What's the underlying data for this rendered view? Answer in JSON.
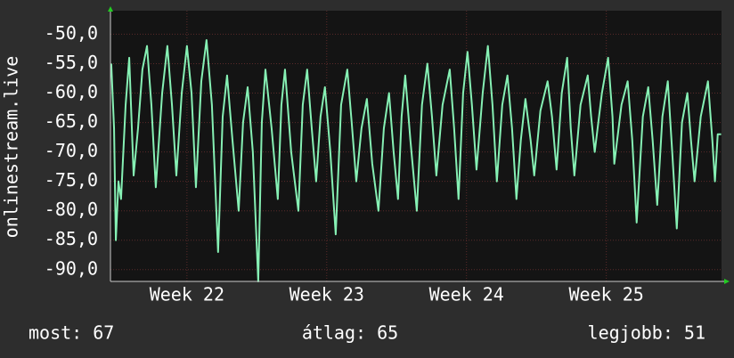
{
  "chart_data": {
    "type": "line",
    "y_label": "onlinestream.live",
    "x": [
      0.04,
      0.18,
      0.27,
      0.4,
      0.53,
      0.76,
      0.94,
      1.16,
      1.38,
      1.6,
      1.83,
      2.05,
      2.27,
      2.59,
      2.85,
      3.08,
      3.3,
      3.57,
      3.83,
      4.06,
      4.28,
      4.55,
      4.81,
      5.08,
      5.39,
      5.62,
      5.84,
      6.11,
      6.42,
      6.64,
      6.87,
      7.13,
      7.4,
      7.58,
      7.76,
      8.07,
      8.38,
      8.56,
      8.74,
      9.05,
      9.41,
      9.63,
      9.85,
      10.08,
      10.3,
      10.52,
      10.74,
      11.01,
      11.28,
      11.55,
      11.86,
      12.08,
      12.31,
      12.57,
      12.84,
      13.11,
      13.42,
      13.69,
      13.95,
      14.18,
      14.4,
      14.58,
      14.76,
      15.02,
      15.34,
      15.6,
      15.87,
      16.1,
      16.32,
      16.63,
      16.99,
      17.21,
      17.43,
      17.66,
      17.88,
      18.1,
      18.33,
      18.64,
      18.9,
      19.13,
      19.35,
      19.62,
      19.88,
      20.11,
      20.33,
      20.55,
      20.78,
      21.04,
      21.22,
      21.53,
      21.89,
      22.11,
      22.34,
      22.6,
      22.87,
      23.05,
      23.23,
      23.54,
      23.9,
      24.07,
      24.25,
      24.61,
      24.92,
      25.14,
      25.23,
      25.59,
      25.9,
      26.13,
      26.35,
      26.66,
      26.93,
      27.15,
      27.38,
      27.64,
      27.91,
      28.13,
      28.36,
      28.62,
      28.89,
      29.07,
      29.25,
      29.56,
      29.92,
      30.14,
      30.27,
      30.41,
      30.58
    ],
    "series": [
      {
        "name": "onlinestream.live",
        "color": "#86f0b4",
        "values": [
          -55,
          -66,
          -85,
          -75,
          -78,
          -62,
          -54,
          -74,
          -66,
          -56,
          -52,
          -62,
          -76,
          -60,
          -52,
          -62,
          -74,
          -60,
          -52,
          -60,
          -76,
          -58,
          -51,
          -62,
          -87,
          -64,
          -57,
          -68,
          -80,
          -65,
          -59,
          -70,
          -92,
          -65,
          -56,
          -66,
          -78,
          -62,
          -56,
          -70,
          -80,
          -62,
          -56,
          -66,
          -75,
          -64,
          -59,
          -70,
          -84,
          -62,
          -56,
          -65,
          -75,
          -66,
          -61,
          -72,
          -80,
          -66,
          -60,
          -70,
          -78,
          -64,
          -57,
          -68,
          -80,
          -62,
          -55,
          -64,
          -74,
          -62,
          -56,
          -66,
          -78,
          -60,
          -53,
          -62,
          -73,
          -60,
          -52,
          -62,
          -75,
          -62,
          -57,
          -66,
          -78,
          -68,
          -61,
          -68,
          -74,
          -63,
          -58,
          -64,
          -73,
          -60,
          -54,
          -66,
          -74,
          -62,
          -57,
          -64,
          -70,
          -60,
          -54,
          -64,
          -72,
          -62,
          -58,
          -68,
          -82,
          -64,
          -59,
          -68,
          -79,
          -64,
          -58,
          -70,
          -83,
          -65,
          -60,
          -68,
          -75,
          -64,
          -58,
          -68,
          -75,
          -67,
          -67
        ]
      }
    ],
    "xlim": [
      0,
      30.6
    ],
    "xticks": [
      {
        "value": 3.83,
        "label": "Week 22"
      },
      {
        "value": 10.83,
        "label": "Week 23"
      },
      {
        "value": 17.83,
        "label": "Week 24"
      },
      {
        "value": 24.83,
        "label": "Week 25"
      }
    ],
    "ylim": [
      -92,
      -46
    ],
    "yticks": [
      {
        "value": -50,
        "label": "-50,0"
      },
      {
        "value": -55,
        "label": "-55,0"
      },
      {
        "value": -60,
        "label": "-60,0"
      },
      {
        "value": -65,
        "label": "-65,0"
      },
      {
        "value": -70,
        "label": "-70,0"
      },
      {
        "value": -75,
        "label": "-75,0"
      },
      {
        "value": -80,
        "label": "-80,0"
      },
      {
        "value": -85,
        "label": "-85,0"
      },
      {
        "value": -90,
        "label": "-90,0"
      }
    ],
    "grid": true,
    "footer": [
      "most: 67",
      "átlag: 65",
      "legjobb: 51"
    ]
  }
}
